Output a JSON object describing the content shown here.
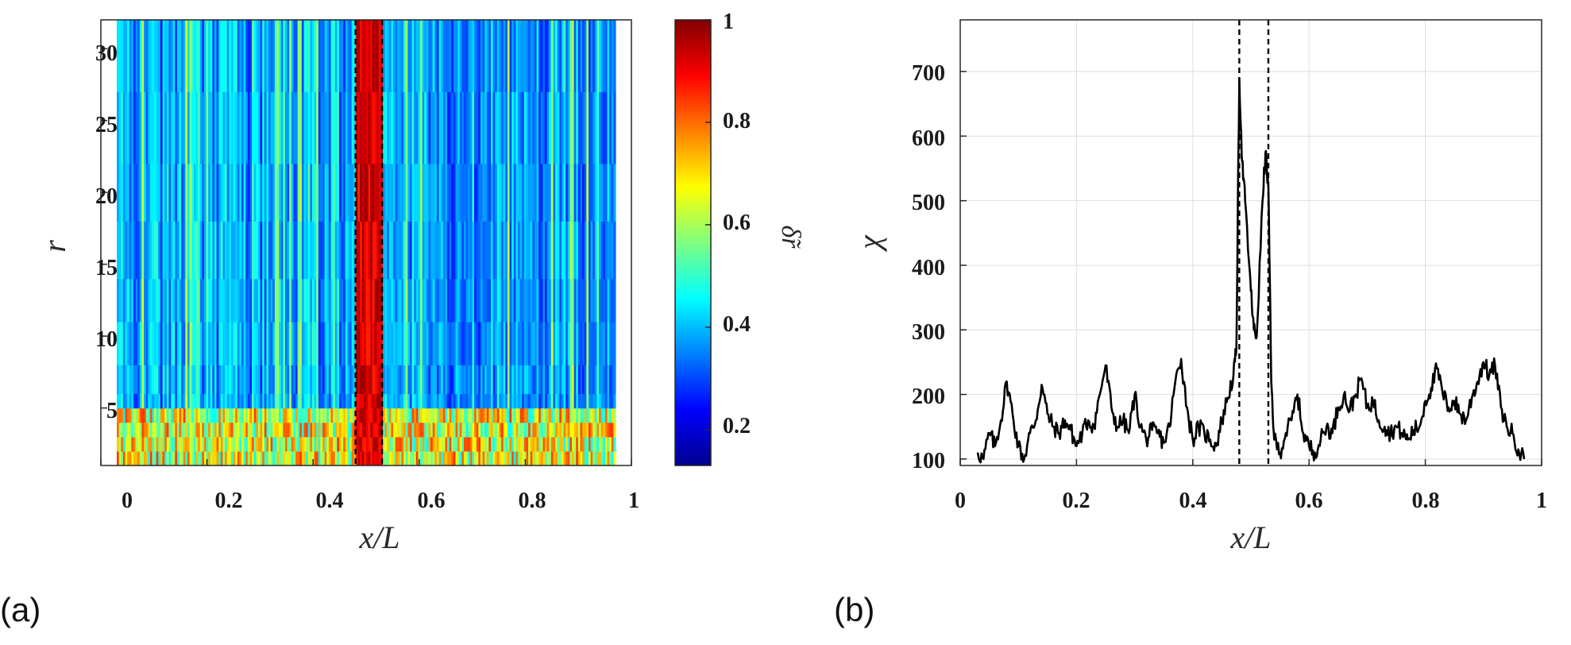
{
  "figure": {
    "panel_a_label": "(a)",
    "panel_b_label": "(b)"
  },
  "chart_data": [
    {
      "type": "heatmap",
      "title": "",
      "xlabel": "x/L",
      "ylabel": "r",
      "xlim": [
        0,
        1
      ],
      "ylim": [
        1,
        32
      ],
      "x_ticks": [
        "0",
        "0.2",
        "0.4",
        "0.6",
        "0.8",
        "1"
      ],
      "y_ticks": [
        "5",
        "10",
        "15",
        "20",
        "25",
        "30"
      ],
      "x_tick_values": [
        0,
        0.2,
        0.4,
        0.6,
        0.8,
        1
      ],
      "y_tick_values": [
        5,
        10,
        15,
        20,
        25,
        30
      ],
      "data_x_range": [
        0.03,
        0.97
      ],
      "colorbar": {
        "label": "δ̃r",
        "range": [
          0.13,
          1
        ],
        "ticks": [
          "0.2",
          "0.4",
          "0.6",
          "0.8",
          "1"
        ],
        "tick_values": [
          0.2,
          0.4,
          0.6,
          0.8,
          1
        ],
        "colormap": "jet"
      },
      "band_x": [
        0.48,
        0.53
      ],
      "base_value": 0.38,
      "band_value": 0.92,
      "low_r_region_max_r": 5,
      "vlines": [
        0.48,
        0.53
      ]
    },
    {
      "type": "line",
      "title": "",
      "xlabel": "x/L",
      "ylabel": "χ",
      "xlim": [
        0,
        1
      ],
      "ylim": [
        90,
        780
      ],
      "x_ticks": [
        "0",
        "0.2",
        "0.4",
        "0.6",
        "0.8",
        "1"
      ],
      "y_ticks": [
        "100",
        "200",
        "300",
        "400",
        "500",
        "600",
        "700"
      ],
      "x_tick_values": [
        0,
        0.2,
        0.4,
        0.6,
        0.8,
        1
      ],
      "y_tick_values": [
        100,
        200,
        300,
        400,
        500,
        600,
        700
      ],
      "grid": true,
      "vlines": [
        0.48,
        0.53
      ],
      "series": [
        {
          "name": "chi",
          "color": "#000000",
          "x": [
            0.03,
            0.04,
            0.05,
            0.06,
            0.07,
            0.08,
            0.09,
            0.1,
            0.11,
            0.12,
            0.13,
            0.14,
            0.15,
            0.16,
            0.17,
            0.18,
            0.19,
            0.2,
            0.21,
            0.22,
            0.23,
            0.24,
            0.25,
            0.26,
            0.27,
            0.28,
            0.29,
            0.3,
            0.31,
            0.32,
            0.33,
            0.34,
            0.35,
            0.36,
            0.37,
            0.38,
            0.39,
            0.4,
            0.41,
            0.42,
            0.43,
            0.44,
            0.45,
            0.46,
            0.47,
            0.475,
            0.48,
            0.485,
            0.49,
            0.5,
            0.505,
            0.51,
            0.52,
            0.525,
            0.53,
            0.535,
            0.54,
            0.55,
            0.56,
            0.57,
            0.58,
            0.59,
            0.6,
            0.61,
            0.62,
            0.63,
            0.64,
            0.65,
            0.66,
            0.67,
            0.68,
            0.69,
            0.7,
            0.71,
            0.72,
            0.73,
            0.74,
            0.75,
            0.76,
            0.77,
            0.78,
            0.79,
            0.8,
            0.81,
            0.82,
            0.83,
            0.84,
            0.85,
            0.86,
            0.87,
            0.88,
            0.89,
            0.9,
            0.91,
            0.92,
            0.93,
            0.94,
            0.95,
            0.96,
            0.97
          ],
          "values": [
            110,
            100,
            140,
            120,
            160,
            220,
            170,
            120,
            100,
            140,
            160,
            215,
            170,
            150,
            140,
            160,
            145,
            120,
            140,
            160,
            150,
            200,
            245,
            180,
            150,
            160,
            140,
            200,
            150,
            130,
            145,
            140,
            125,
            150,
            220,
            255,
            180,
            130,
            150,
            140,
            130,
            120,
            160,
            195,
            230,
            270,
            690,
            560,
            500,
            360,
            300,
            290,
            500,
            575,
            520,
            220,
            130,
            110,
            140,
            160,
            200,
            140,
            120,
            110,
            130,
            150,
            140,
            180,
            200,
            175,
            200,
            225,
            180,
            190,
            160,
            150,
            140,
            150,
            140,
            130,
            145,
            150,
            190,
            210,
            240,
            200,
            180,
            190,
            170,
            160,
            195,
            220,
            250,
            230,
            245,
            180,
            150,
            140,
            115,
            100
          ]
        }
      ]
    }
  ]
}
